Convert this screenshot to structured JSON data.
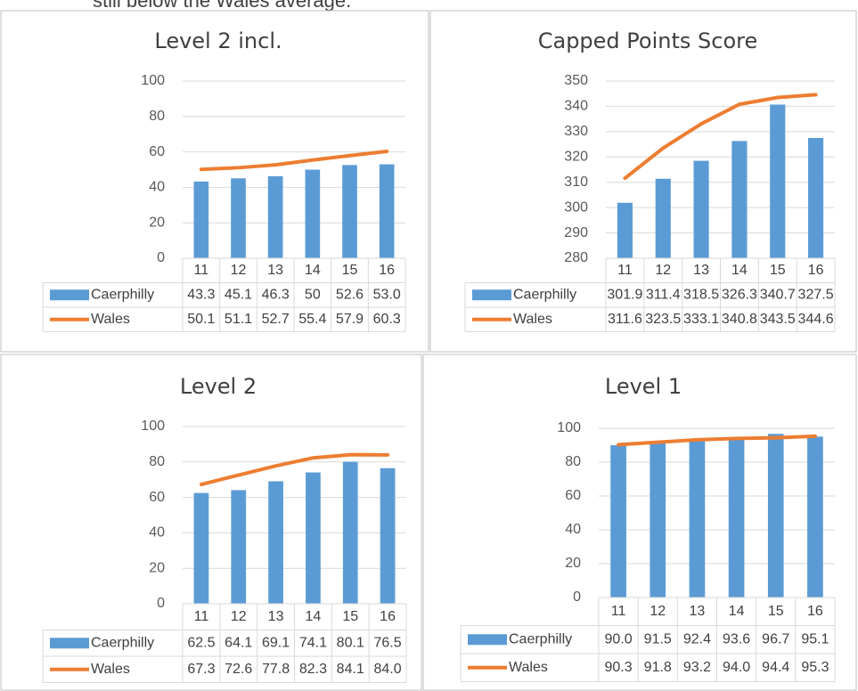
{
  "text": "still below the Wales average.",
  "chart_data": [
    {
      "type": "bar",
      "title": "Level 2 incl.",
      "categories": [
        "11",
        "12",
        "13",
        "14",
        "15",
        "16"
      ],
      "series": [
        {
          "name": "Caerphilly",
          "type": "bar",
          "color": "#5b9bd5",
          "values": [
            43.3,
            45.1,
            46.3,
            50,
            52.6,
            53.0
          ],
          "value_labels": [
            "43.3",
            "45.1",
            "46.3",
            "50",
            "52.6",
            "53.0"
          ]
        },
        {
          "name": "Wales",
          "type": "line",
          "color": "#ed7d31",
          "values": [
            50.1,
            51.1,
            52.7,
            55.4,
            57.9,
            60.3
          ]
        }
      ],
      "ylim": [
        0,
        100
      ],
      "yticks": [
        0,
        20,
        40,
        60,
        80,
        100
      ],
      "grid": true
    },
    {
      "type": "bar",
      "title": "Capped Points Score",
      "categories": [
        "11",
        "12",
        "13",
        "14",
        "15",
        "16"
      ],
      "series": [
        {
          "name": "Caerphilly",
          "type": "bar",
          "color": "#5b9bd5",
          "values": [
            301.9,
            311.4,
            318.5,
            326.3,
            340.7,
            327.5
          ]
        },
        {
          "name": "Wales",
          "type": "line",
          "color": "#ed7d31",
          "values": [
            311.6,
            323.5,
            333.1,
            340.8,
            343.5,
            344.6
          ]
        }
      ],
      "ylim": [
        280,
        350
      ],
      "yticks": [
        280,
        290,
        300,
        310,
        320,
        330,
        340,
        350
      ],
      "grid": true
    },
    {
      "type": "bar",
      "title": "Level 2",
      "categories": [
        "11",
        "12",
        "13",
        "14",
        "15",
        "16"
      ],
      "series": [
        {
          "name": "Caerphilly",
          "type": "bar",
          "color": "#5b9bd5",
          "values": [
            62.5,
            64.1,
            69.1,
            74.1,
            80.1,
            76.5
          ]
        },
        {
          "name": "Wales",
          "type": "line",
          "color": "#ed7d31",
          "values": [
            67.3,
            72.6,
            77.8,
            82.3,
            84.1,
            84.0
          ],
          "value_labels": [
            "67.3",
            "72.6",
            "77.8",
            "82.3",
            "84.1",
            "84.0"
          ]
        }
      ],
      "ylim": [
        0,
        100
      ],
      "yticks": [
        0,
        20,
        40,
        60,
        80,
        100
      ],
      "grid": true
    },
    {
      "type": "bar",
      "title": "Level 1",
      "categories": [
        "11",
        "12",
        "13",
        "14",
        "15",
        "16"
      ],
      "series": [
        {
          "name": "Caerphilly",
          "type": "bar",
          "color": "#5b9bd5",
          "values": [
            90.0,
            91.5,
            92.4,
            93.6,
            96.7,
            95.1
          ],
          "value_labels": [
            "90.0",
            "91.5",
            "92.4",
            "93.6",
            "96.7",
            "95.1"
          ]
        },
        {
          "name": "Wales",
          "type": "line",
          "color": "#ed7d31",
          "values": [
            90.3,
            91.8,
            93.2,
            94.0,
            94.4,
            95.3
          ],
          "value_labels": [
            "90.3",
            "91.8",
            "93.2",
            "94.0",
            "94.4",
            "95.3"
          ]
        }
      ],
      "ylim": [
        0,
        100
      ],
      "yticks": [
        0,
        20,
        40,
        60,
        80,
        100
      ],
      "grid": true
    }
  ]
}
